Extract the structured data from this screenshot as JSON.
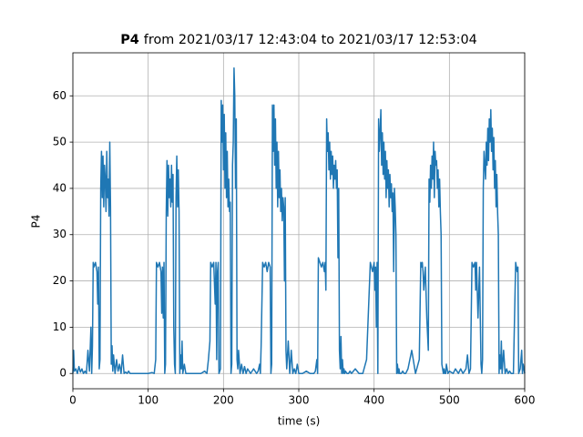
{
  "chart_data": {
    "type": "line",
    "title_bold": "P4",
    "title": "from 2021/03/17 12:43:04 to 2021/03/17 12:53:04",
    "x_label": "time (s)",
    "y_label": "P4",
    "color": "#1f77b4",
    "grid": true,
    "xlim": [
      0,
      600
    ],
    "xticks": [
      0,
      100,
      200,
      300,
      400,
      500,
      600
    ],
    "ylim": [
      -3.3,
      69.3
    ],
    "yticks": [
      0,
      10,
      20,
      30,
      40,
      50,
      60
    ],
    "x": [
      0,
      1,
      2,
      4,
      6,
      8,
      10,
      12,
      14,
      16,
      18,
      20,
      22,
      24,
      25,
      26,
      27,
      28,
      30,
      32,
      33,
      34,
      35,
      36,
      37,
      38,
      39,
      40,
      41,
      42,
      43,
      44,
      45,
      46,
      47,
      48,
      49,
      50,
      51,
      52,
      53,
      54,
      56,
      58,
      60,
      62,
      64,
      66,
      68,
      70,
      72,
      74,
      76,
      80,
      85,
      90,
      95,
      100,
      105,
      108,
      110,
      111,
      113,
      115,
      117,
      118,
      119,
      120,
      121,
      122,
      123,
      124,
      125,
      126,
      127,
      128,
      129,
      130,
      131,
      132,
      133,
      134,
      135,
      136,
      137,
      138,
      139,
      140,
      141,
      142,
      143,
      144,
      145,
      146,
      148,
      150,
      155,
      160,
      165,
      170,
      175,
      178,
      180,
      182,
      183,
      185,
      187,
      189,
      190,
      191,
      192,
      193,
      194,
      196,
      197,
      198,
      199,
      200,
      201,
      202,
      203,
      204,
      205,
      206,
      207,
      208,
      209,
      210,
      211,
      212,
      213,
      214,
      215,
      216,
      217,
      218,
      219,
      220,
      222,
      224,
      226,
      228,
      230,
      232,
      236,
      240,
      244,
      246,
      248,
      249,
      250,
      252,
      254,
      256,
      258,
      260,
      262,
      263,
      264,
      265,
      266,
      267,
      268,
      269,
      270,
      271,
      272,
      273,
      274,
      275,
      276,
      277,
      278,
      279,
      280,
      281,
      282,
      283,
      284,
      286,
      288,
      290,
      292,
      294,
      296,
      298,
      300,
      305,
      310,
      315,
      320,
      322,
      324,
      325,
      326,
      328,
      330,
      332,
      334,
      335,
      336,
      337,
      338,
      339,
      340,
      341,
      342,
      343,
      344,
      345,
      346,
      347,
      348,
      349,
      350,
      351,
      352,
      353,
      354,
      355,
      356,
      357,
      358,
      359,
      360,
      361,
      362,
      364,
      366,
      368,
      370,
      375,
      380,
      385,
      390,
      395,
      398,
      400,
      401,
      402,
      403,
      404,
      405,
      406,
      407,
      408,
      409,
      410,
      411,
      412,
      413,
      414,
      415,
      416,
      417,
      418,
      419,
      420,
      421,
      422,
      423,
      424,
      425,
      426,
      427,
      428,
      429,
      430,
      431,
      432,
      433,
      434,
      436,
      438,
      440,
      442,
      445,
      450,
      455,
      460,
      462,
      463,
      464,
      465,
      466,
      468,
      470,
      472,
      473,
      474,
      475,
      476,
      477,
      478,
      479,
      480,
      481,
      482,
      483,
      484,
      485,
      486,
      487,
      488,
      489,
      490,
      491,
      492,
      493,
      494,
      495,
      496,
      498,
      500,
      505,
      508,
      510,
      512,
      515,
      518,
      520,
      522,
      524,
      526,
      528,
      530,
      532,
      534,
      535,
      536,
      538,
      540,
      542,
      543,
      544,
      545,
      546,
      548,
      549,
      550,
      551,
      552,
      553,
      554,
      555,
      556,
      557,
      558,
      559,
      560,
      561,
      562,
      563,
      564,
      565,
      566,
      567,
      568,
      569,
      570,
      572,
      574,
      576,
      578,
      580,
      582,
      585,
      588,
      590,
      591,
      592,
      594,
      596,
      597,
      598,
      600
    ],
    "values": [
      0,
      5,
      0.5,
      1,
      0,
      1.5,
      0.3,
      1,
      0,
      0.5,
      0,
      5,
      0.5,
      10,
      0,
      6,
      24,
      23,
      24,
      22,
      15,
      23,
      1,
      3,
      40,
      48,
      38,
      47,
      36,
      45,
      42,
      35,
      48,
      38,
      42,
      34,
      50,
      36,
      2,
      6,
      0.5,
      4,
      0,
      3,
      0.5,
      2,
      0,
      4,
      0,
      0.3,
      0,
      0.5,
      0,
      0,
      0,
      0,
      0,
      0,
      0.2,
      0,
      3,
      24,
      23,
      24,
      22,
      13,
      23,
      12,
      24,
      0,
      2,
      35,
      46,
      34,
      45,
      38,
      42,
      36,
      45,
      37,
      43,
      10,
      2,
      0,
      38,
      47,
      36,
      44,
      35,
      0,
      4,
      1,
      7,
      0,
      2,
      0,
      0,
      0,
      0,
      0,
      0.5,
      0,
      3,
      7,
      24,
      23,
      24,
      15,
      24,
      3,
      22,
      24,
      0,
      1,
      59,
      50,
      58,
      44,
      56,
      40,
      52,
      38,
      48,
      36,
      42,
      35,
      37,
      0,
      2,
      45,
      50,
      66,
      60,
      40,
      55,
      3,
      1,
      5,
      0,
      2,
      0,
      1.5,
      0,
      1,
      0,
      1,
      0,
      0.5,
      2,
      0,
      6,
      24,
      23,
      24,
      22,
      24,
      23,
      0,
      2,
      58,
      48,
      58,
      45,
      55,
      40,
      50,
      36,
      48,
      38,
      44,
      35,
      40,
      33,
      38,
      36,
      20,
      38,
      5,
      1,
      7,
      0,
      5,
      0,
      1,
      0,
      2,
      0,
      0,
      0.5,
      0,
      0,
      0.5,
      3,
      0,
      25,
      24,
      23,
      24,
      22,
      24,
      18,
      55,
      48,
      52,
      44,
      50,
      42,
      48,
      43,
      47,
      40,
      45,
      42,
      46,
      40,
      44,
      25,
      40,
      5,
      1,
      8,
      0,
      3,
      0,
      1,
      0,
      0.5,
      0,
      0,
      0.5,
      0,
      1,
      0,
      0,
      3,
      24,
      22,
      24,
      18,
      23,
      10,
      24,
      0,
      55,
      48,
      52,
      57,
      45,
      52,
      43,
      50,
      42,
      48,
      38,
      46,
      40,
      44,
      36,
      43,
      38,
      41,
      35,
      39,
      22,
      40,
      36,
      30,
      0,
      2,
      0,
      1,
      0,
      0,
      0.5,
      0,
      0,
      1,
      5,
      0,
      3,
      24,
      23,
      24,
      22,
      18,
      23,
      12,
      5,
      42,
      37,
      45,
      40,
      47,
      42,
      50,
      38,
      48,
      45,
      46,
      40,
      44,
      36,
      42,
      35,
      30,
      2,
      1,
      0,
      1,
      0,
      0,
      2,
      0,
      0.5,
      0,
      1,
      0.5,
      0,
      1,
      0,
      0.5,
      1,
      4,
      0,
      1,
      24,
      23,
      24,
      18,
      24,
      12,
      23,
      2,
      0,
      3,
      40,
      48,
      42,
      50,
      45,
      53,
      46,
      55,
      50,
      57,
      48,
      53,
      44,
      51,
      40,
      46,
      36,
      43,
      35,
      30,
      0,
      4,
      1,
      7,
      0,
      5,
      0,
      1,
      0,
      0.5,
      0,
      0,
      24,
      22,
      23,
      0,
      1,
      5,
      0,
      2,
      0
    ]
  }
}
